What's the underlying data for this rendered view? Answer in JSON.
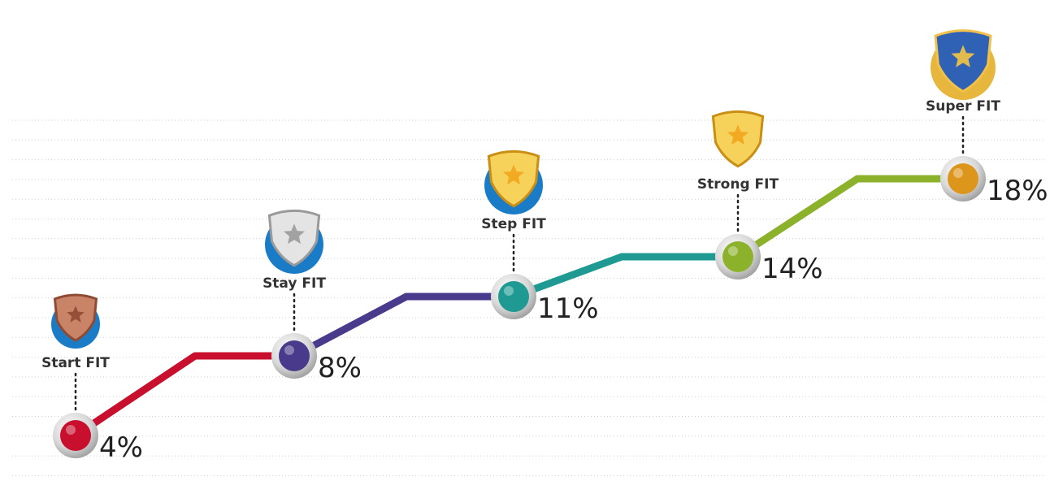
{
  "steps": [
    {
      "label": "Start FIT",
      "value": "4%"
    },
    {
      "label": "Stay FIT",
      "value": "8%"
    },
    {
      "label": "Step FIT",
      "value": "11%"
    },
    {
      "label": "Strong FIT",
      "value": "14%"
    },
    {
      "label": "Super FIT",
      "value": "18%"
    }
  ]
}
